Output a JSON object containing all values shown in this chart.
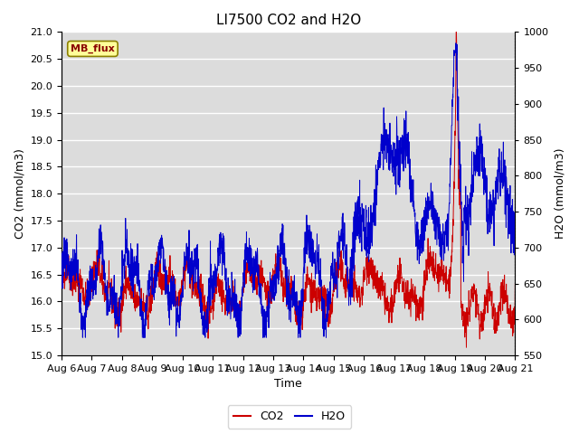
{
  "title": "LI7500 CO2 and H2O",
  "xlabel": "Time",
  "ylabel_left": "CO2 (mmol/m3)",
  "ylabel_right": "H2O (mmol/m3)",
  "ylim_left": [
    15.0,
    21.0
  ],
  "ylim_right": [
    550,
    1000
  ],
  "x_tick_labels": [
    "Aug 6",
    "Aug 7",
    "Aug 8",
    "Aug 9",
    "Aug 10",
    "Aug 11",
    "Aug 12",
    "Aug 13",
    "Aug 14",
    "Aug 15",
    "Aug 16",
    "Aug 17",
    "Aug 18",
    "Aug 19",
    "Aug 20",
    "Aug 21"
  ],
  "color_co2": "#cc0000",
  "color_h2o": "#0000cc",
  "legend_label_co2": "CO2",
  "legend_label_h2o": "H2O",
  "annotation_text": "MB_flux",
  "plot_bg": "#dcdcdc",
  "fig_bg": "#ffffff",
  "title_fontsize": 11,
  "axis_fontsize": 9,
  "tick_fontsize": 8,
  "n_points": 2000,
  "seed": 42
}
